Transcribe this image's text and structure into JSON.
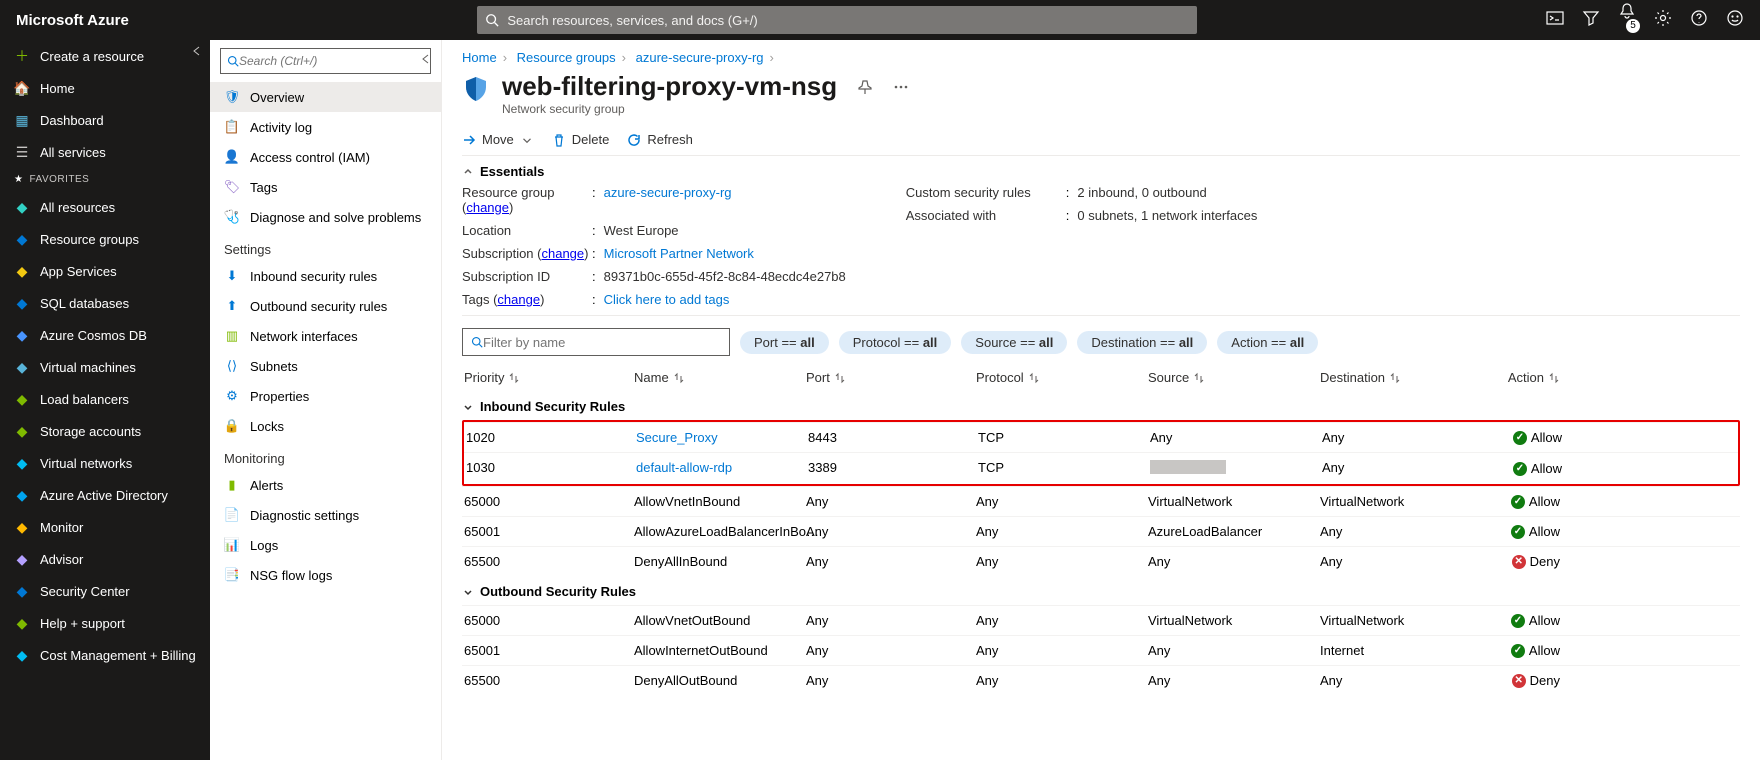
{
  "topbar": {
    "brand": "Microsoft Azure",
    "search_placeholder": "Search resources, services, and docs (G+/)",
    "notif_count": "5"
  },
  "leftnav": {
    "create": "Create a resource",
    "home": "Home",
    "dashboard": "Dashboard",
    "allservices": "All services",
    "favorites_hdr": "FAVORITES",
    "items": [
      "All resources",
      "Resource groups",
      "App Services",
      "SQL databases",
      "Azure Cosmos DB",
      "Virtual machines",
      "Load balancers",
      "Storage accounts",
      "Virtual networks",
      "Azure Active Directory",
      "Monitor",
      "Advisor",
      "Security Center",
      "Help + support",
      "Cost Management + Billing"
    ]
  },
  "subnav": {
    "search_placeholder": "Search (Ctrl+/)",
    "overview": "Overview",
    "activity": "Activity log",
    "iam": "Access control (IAM)",
    "tags": "Tags",
    "diagnose": "Diagnose and solve problems",
    "settings_hdr": "Settings",
    "inbound": "Inbound security rules",
    "outbound": "Outbound security rules",
    "netif": "Network interfaces",
    "subnets": "Subnets",
    "props": "Properties",
    "locks": "Locks",
    "mon_hdr": "Monitoring",
    "alerts": "Alerts",
    "diagset": "Diagnostic settings",
    "logs": "Logs",
    "flowlogs": "NSG flow logs"
  },
  "crumb": {
    "home": "Home",
    "rg": "Resource groups",
    "rgname": "azure-secure-proxy-rg"
  },
  "header": {
    "title": "web-filtering-proxy-vm-nsg",
    "subtitle": "Network security group"
  },
  "cmds": {
    "move": "Move",
    "delete": "Delete",
    "refresh": "Refresh"
  },
  "ess": {
    "hdr": "Essentials",
    "rg_k": "Resource group (",
    "rg_change": "change",
    "rg_close": ")",
    "rg_v": "azure-secure-proxy-rg",
    "loc_k": "Location",
    "loc_v": "West Europe",
    "sub_k": "Subscription (",
    "sub_change": "change",
    "sub_close": ")",
    "sub_v": "Microsoft Partner Network",
    "subid_k": "Subscription ID",
    "subid_v": "89371b0c-655d-45f2-8c84-48ecdc4e27b8",
    "tags_k": "Tags (",
    "tags_change": "change",
    "tags_close": ")",
    "tags_v": "Click here to add tags",
    "csr_k": "Custom security rules",
    "csr_v": "2 inbound, 0 outbound",
    "aw_k": "Associated with",
    "aw_v": "0 subnets, 1 network interfaces"
  },
  "filter": {
    "placeholder": "Filter by name",
    "port": "Port == ",
    "proto": "Protocol == ",
    "src": "Source == ",
    "dest": "Destination == ",
    "act": "Action == ",
    "all": "all"
  },
  "cols": {
    "priority": "Priority",
    "name": "Name",
    "port": "Port",
    "protocol": "Protocol",
    "source": "Source",
    "destination": "Destination",
    "action": "Action"
  },
  "groups": {
    "inbound": "Inbound Security Rules",
    "outbound": "Outbound Security Rules"
  },
  "inbound": [
    {
      "pri": "1020",
      "name": "Secure_Proxy",
      "link": true,
      "port": "8443",
      "proto": "TCP",
      "src": "Any",
      "dest": "Any",
      "act": "Allow",
      "ok": true
    },
    {
      "pri": "1030",
      "name": "default-allow-rdp",
      "link": true,
      "port": "3389",
      "proto": "TCP",
      "src": "REDACT",
      "dest": "Any",
      "act": "Allow",
      "ok": true
    },
    {
      "pri": "65000",
      "name": "AllowVnetInBound",
      "link": false,
      "port": "Any",
      "proto": "Any",
      "src": "VirtualNetwork",
      "dest": "VirtualNetwork",
      "act": "Allow",
      "ok": true
    },
    {
      "pri": "65001",
      "name": "AllowAzureLoadBalancerInBo…",
      "link": false,
      "port": "Any",
      "proto": "Any",
      "src": "AzureLoadBalancer",
      "dest": "Any",
      "act": "Allow",
      "ok": true
    },
    {
      "pri": "65500",
      "name": "DenyAllInBound",
      "link": false,
      "port": "Any",
      "proto": "Any",
      "src": "Any",
      "dest": "Any",
      "act": "Deny",
      "ok": false
    }
  ],
  "outbound": [
    {
      "pri": "65000",
      "name": "AllowVnetOutBound",
      "link": false,
      "port": "Any",
      "proto": "Any",
      "src": "VirtualNetwork",
      "dest": "VirtualNetwork",
      "act": "Allow",
      "ok": true
    },
    {
      "pri": "65001",
      "name": "AllowInternetOutBound",
      "link": false,
      "port": "Any",
      "proto": "Any",
      "src": "Any",
      "dest": "Internet",
      "act": "Allow",
      "ok": true
    },
    {
      "pri": "65500",
      "name": "DenyAllOutBound",
      "link": false,
      "port": "Any",
      "proto": "Any",
      "src": "Any",
      "dest": "Any",
      "act": "Deny",
      "ok": false
    }
  ],
  "nav_icon_colors": [
    "#32d1c4",
    "#0078d4",
    "#f2c811",
    "#0078d4",
    "#4894fe",
    "#59b4d9",
    "#7fba00",
    "#7fba00",
    "#00bcf2",
    "#00a4ef",
    "#ffb900",
    "#b4a0ff",
    "#0078d4",
    "#7fba00",
    "#00bcf2",
    "#44c26b"
  ]
}
